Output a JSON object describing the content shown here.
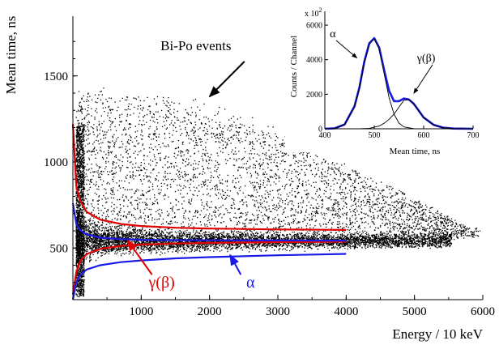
{
  "chart_data": [
    {
      "type": "scatter",
      "xlabel": "Energy / 10 keV",
      "ylabel": "Mean time, ns",
      "xlim": [
        0,
        6000
      ],
      "ylim": [
        200,
        1800
      ],
      "x_ticks": [
        "1000",
        "2000",
        "3000",
        "4000",
        "5000",
        "6000"
      ],
      "y_ticks": [
        "500",
        "1000",
        "1500"
      ],
      "grid": false,
      "annotations": [
        {
          "text": "Bi-Po events",
          "color": "#000000",
          "x": 1800,
          "y": 1650,
          "arrow_to": [
            2000,
            1380
          ]
        },
        {
          "text": "γ(β)",
          "color": "#e00000",
          "x": 1300,
          "y": 270,
          "arrow_to": [
            800,
            545
          ]
        },
        {
          "text": "α",
          "color": "#1a1ae6",
          "x": 2600,
          "y": 270,
          "arrow_to": [
            2300,
            460
          ]
        }
      ],
      "scatter_region": {
        "description_points": "Bi-Po events cloud",
        "alpha_band_center_ns": 540,
        "gamma_band_center_ns": 560,
        "cloud_upper_edge": [
          [
            300,
            1440
          ],
          [
            1000,
            1450
          ],
          [
            2000,
            1370
          ],
          [
            3000,
            1200
          ],
          [
            4000,
            1010
          ],
          [
            5000,
            800
          ],
          [
            5800,
            620
          ]
        ],
        "cloud_lower_edge": [
          [
            300,
            440
          ],
          [
            1000,
            450
          ],
          [
            2000,
            460
          ],
          [
            3000,
            470
          ],
          [
            4000,
            490
          ],
          [
            5000,
            530
          ],
          [
            5800,
            560
          ]
        ]
      },
      "series": [
        {
          "name": "γ(β) upper limit",
          "color": "#e00000",
          "x": [
            0,
            50,
            100,
            200,
            400,
            700,
            1000,
            1500,
            2000,
            3000,
            4000
          ],
          "y": [
            1220,
            860,
            780,
            710,
            665,
            640,
            628,
            618,
            613,
            608,
            605
          ]
        },
        {
          "name": "γ(β) lower limit",
          "color": "#e00000",
          "x": [
            0,
            50,
            100,
            200,
            400,
            700,
            1000,
            1500,
            2000,
            3000,
            4000
          ],
          "y": [
            230,
            360,
            420,
            465,
            495,
            512,
            520,
            526,
            530,
            534,
            537
          ]
        },
        {
          "name": "α upper limit",
          "color": "#1a1ae6",
          "x": [
            0,
            50,
            100,
            200,
            400,
            700,
            1000,
            1500,
            2000,
            3000,
            4000
          ],
          "y": [
            760,
            640,
            605,
            580,
            560,
            552,
            548,
            546,
            545,
            544,
            543
          ]
        },
        {
          "name": "α lower limit",
          "color": "#1a1ae6",
          "x": [
            0,
            50,
            100,
            200,
            400,
            700,
            1000,
            1500,
            2000,
            3000,
            4000
          ],
          "y": [
            200,
            300,
            340,
            375,
            400,
            418,
            428,
            440,
            447,
            458,
            466
          ]
        }
      ]
    },
    {
      "type": "line",
      "xlabel": "Mean time, ns",
      "ylabel": "Counts / Channel",
      "y_multiplier": "x 10",
      "y_multiplier_exp": "2",
      "xlim": [
        400,
        700
      ],
      "ylim": [
        0,
        6800
      ],
      "x_ticks": [
        "400",
        "500",
        "600",
        "700"
      ],
      "y_ticks": [
        "0",
        "2000",
        "4000",
        "6000"
      ],
      "annotations": [
        {
          "text": "α",
          "x": 410,
          "y": 5300,
          "arrow_to": [
            465,
            4100
          ]
        },
        {
          "text": "γ(β)",
          "x": 605,
          "y": 3900,
          "arrow_to": [
            580,
            2050
          ]
        }
      ],
      "series": [
        {
          "name": "total",
          "color": "#1a1ae6",
          "x": [
            400,
            420,
            440,
            460,
            470,
            480,
            490,
            500,
            510,
            520,
            530,
            540,
            550,
            560,
            570,
            580,
            590,
            600,
            620,
            640,
            660,
            700
          ],
          "y": [
            0,
            30,
            250,
            1300,
            2400,
            3900,
            4950,
            5250,
            4700,
            3400,
            2200,
            1600,
            1600,
            1750,
            1700,
            1450,
            1050,
            650,
            230,
            60,
            15,
            0
          ]
        },
        {
          "name": "α component",
          "color": "#000000",
          "x": [
            400,
            420,
            440,
            460,
            470,
            480,
            490,
            500,
            510,
            520,
            530,
            540,
            550,
            560,
            580,
            600
          ],
          "y": [
            0,
            20,
            240,
            1280,
            2350,
            3850,
            4900,
            5200,
            4620,
            3200,
            1800,
            850,
            330,
            110,
            10,
            0
          ]
        },
        {
          "name": "γ(β) component",
          "color": "#000000",
          "x": [
            470,
            490,
            510,
            520,
            530,
            540,
            550,
            560,
            570,
            580,
            590,
            600,
            620,
            640,
            660,
            700
          ],
          "y": [
            0,
            30,
            160,
            320,
            550,
            850,
            1250,
            1650,
            1680,
            1440,
            1050,
            650,
            230,
            60,
            15,
            0
          ]
        }
      ]
    }
  ]
}
